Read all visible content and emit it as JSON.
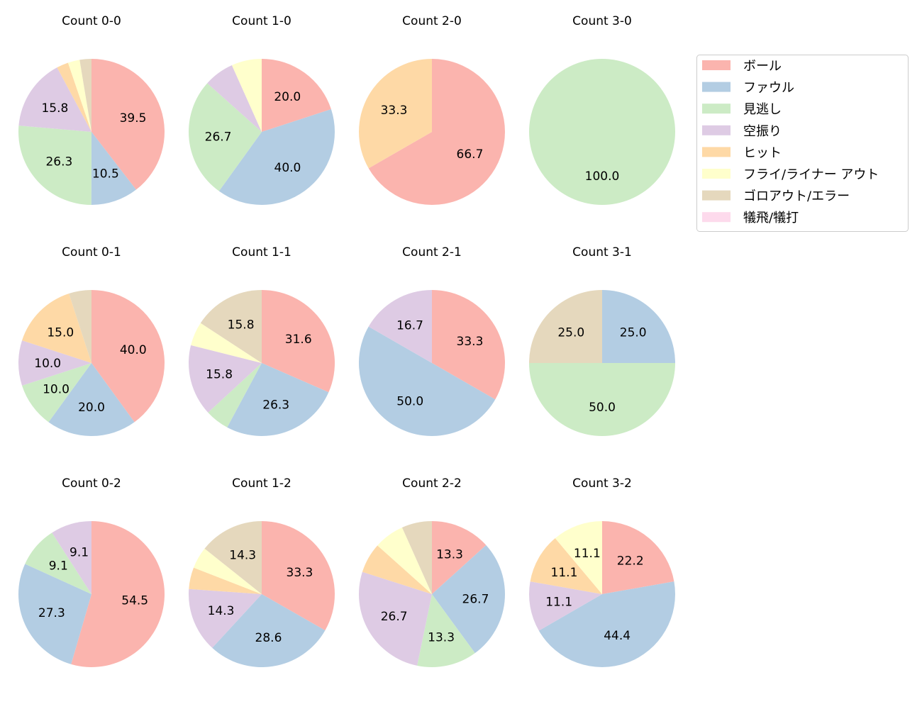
{
  "chart_data": {
    "type": "pie",
    "categories": [
      "ボール",
      "ファウル",
      "見逃し",
      "空振り",
      "ヒット",
      "フライ/ライナー アウト",
      "ゴロアウト/エラー",
      "犠飛/犠打"
    ],
    "colors": [
      "#fbb4ae",
      "#b3cde3",
      "#ccebc5",
      "#decbe4",
      "#fed9a6",
      "#ffffcc",
      "#e5d8bd",
      "#fddaec"
    ],
    "start_angle": "top, clockwise",
    "legend_position": "right",
    "pies": [
      {
        "title": "Count 0-0",
        "values": [
          39.5,
          10.5,
          26.3,
          15.8,
          2.6,
          2.6,
          2.6,
          0
        ]
      },
      {
        "title": "Count 1-0",
        "values": [
          20.0,
          40.0,
          26.7,
          6.7,
          0,
          6.7,
          0,
          0
        ]
      },
      {
        "title": "Count 2-0",
        "values": [
          66.7,
          0,
          0,
          0,
          33.3,
          0,
          0,
          0
        ]
      },
      {
        "title": "Count 3-0",
        "values": [
          0,
          0,
          100.0,
          0,
          0,
          0,
          0,
          0
        ]
      },
      {
        "title": "Count 0-1",
        "values": [
          40.0,
          20.0,
          10.0,
          10.0,
          15.0,
          0,
          5.0,
          0
        ]
      },
      {
        "title": "Count 1-1",
        "values": [
          31.6,
          26.3,
          5.3,
          15.8,
          0,
          5.3,
          15.8,
          0
        ]
      },
      {
        "title": "Count 2-1",
        "values": [
          33.3,
          50.0,
          0,
          16.7,
          0,
          0,
          0,
          0
        ]
      },
      {
        "title": "Count 3-1",
        "values": [
          0,
          25.0,
          50.0,
          0,
          0,
          0,
          25.0,
          0
        ]
      },
      {
        "title": "Count 0-2",
        "values": [
          54.5,
          27.3,
          9.1,
          9.1,
          0,
          0,
          0,
          0
        ]
      },
      {
        "title": "Count 1-2",
        "values": [
          33.3,
          28.6,
          0,
          14.3,
          4.8,
          4.8,
          14.3,
          0
        ]
      },
      {
        "title": "Count 2-2",
        "values": [
          13.3,
          26.7,
          13.3,
          26.7,
          6.7,
          6.7,
          6.7,
          0
        ]
      },
      {
        "title": "Count 3-2",
        "values": [
          22.2,
          44.4,
          0,
          11.1,
          11.1,
          11.1,
          0,
          0
        ]
      }
    ]
  }
}
